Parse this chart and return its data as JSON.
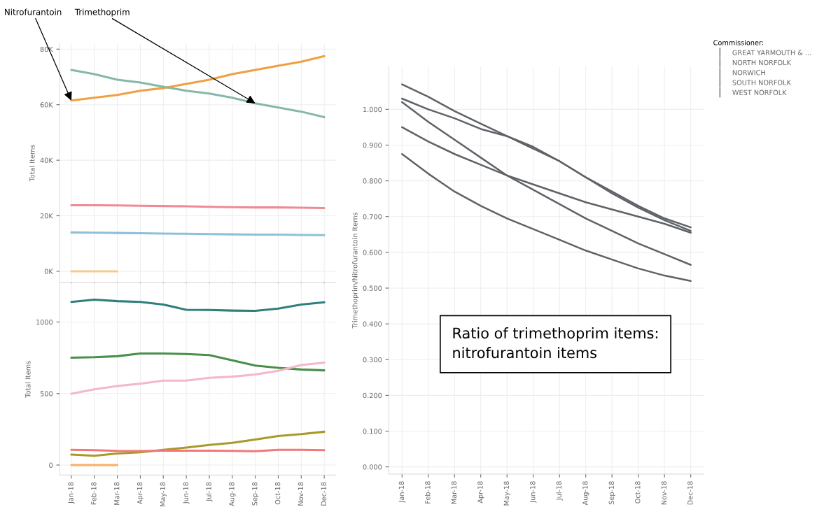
{
  "chart_data": [
    {
      "type": "line",
      "ylabel": "Total Items",
      "tick_labels": "y",
      "grid": true,
      "categories": [
        "Jan-18",
        "Feb-18",
        "Mar-18",
        "Apr-18",
        "May-18",
        "Jun-18",
        "Jul-18",
        "Aug-18",
        "Sep-18",
        "Oct-18",
        "Nov-18",
        "Dec-18"
      ],
      "ylim": [
        -4000,
        82000
      ],
      "yticks": [
        {
          "value": 0,
          "label": "0K"
        },
        {
          "value": 20000,
          "label": "20K"
        },
        {
          "value": 40000,
          "label": "40K"
        },
        {
          "value": 60000,
          "label": "60K"
        },
        {
          "value": 80000,
          "label": "80K"
        }
      ],
      "annotations": [
        {
          "text": "Nitrofurantoin",
          "x": "Jan-18",
          "y": 61500
        },
        {
          "text": "Trimethoprim",
          "x": "Sep-18",
          "y": 60500
        }
      ],
      "series": [
        {
          "color": "#f0a040",
          "values": [
            61500,
            62500,
            63500,
            65000,
            66000,
            67500,
            69000,
            71000,
            72500,
            74000,
            75500,
            77500
          ]
        },
        {
          "color": "#86b8a8",
          "values": [
            72500,
            71000,
            69000,
            68000,
            66500,
            65000,
            64000,
            62500,
            60500,
            59000,
            57500,
            55500
          ]
        },
        {
          "color": "#ef8a95",
          "values": [
            23800,
            23800,
            23700,
            23600,
            23500,
            23400,
            23200,
            23100,
            23000,
            23000,
            22900,
            22800
          ]
        },
        {
          "color": "#8fc0d8",
          "values": [
            14000,
            13900,
            13800,
            13700,
            13600,
            13500,
            13400,
            13300,
            13200,
            13200,
            13100,
            13000
          ]
        },
        {
          "color": "#f7c98c",
          "values": [
            0,
            0,
            0,
            null,
            null,
            null,
            null,
            null,
            null,
            null,
            null,
            null
          ]
        }
      ]
    },
    {
      "type": "line",
      "ylabel": "Total Items",
      "grid": true,
      "categories": [
        "Jan-18",
        "Feb-18",
        "Mar-18",
        "Apr-18",
        "May-18",
        "Jun-18",
        "Jul-18",
        "Aug-18",
        "Sep-18",
        "Oct-18",
        "Nov-18",
        "Dec-18"
      ],
      "ylim": [
        -70,
        1270
      ],
      "yticks": [
        0,
        500,
        1000
      ],
      "series": [
        {
          "color": "#2f7f7a",
          "values": [
            1141,
            1156,
            1146,
            1141,
            1122,
            1086,
            1084,
            1080,
            1078,
            1094,
            1122,
            1138
          ]
        },
        {
          "color": "#4a8f4a",
          "values": [
            751,
            754,
            761,
            780,
            780,
            776,
            769,
            732,
            696,
            680,
            668,
            662
          ]
        },
        {
          "color": "#f4b8c8",
          "values": [
            499,
            529,
            553,
            569,
            590,
            590,
            610,
            618,
            633,
            659,
            699,
            716
          ]
        },
        {
          "color": "#a89a2a",
          "values": [
            73,
            65,
            81,
            89,
            106,
            122,
            141,
            155,
            179,
            203,
            216,
            233
          ]
        },
        {
          "color": "#f07878",
          "values": [
            106,
            104,
            99,
            98,
            100,
            100,
            100,
            99,
            97,
            106,
            106,
            104
          ]
        },
        {
          "color": "#f7b060",
          "values": [
            0,
            0,
            0,
            null,
            null,
            null,
            null,
            null,
            null,
            null,
            null,
            null
          ]
        }
      ]
    },
    {
      "type": "line",
      "ylabel": "Trimethoprim/Nitrofurantoin Items",
      "grid": true,
      "legend": "top right",
      "legend_title": "Commissioner:",
      "categories": [
        "Jan-18",
        "Feb-18",
        "Mar-18",
        "Apr-18",
        "May-18",
        "Jun-18",
        "Jul-18",
        "Aug-18",
        "Sep-18",
        "Oct-18",
        "Nov-18",
        "Dec-18"
      ],
      "ylim": [
        -0.02,
        1.12
      ],
      "yticks": [
        {
          "value": 0,
          "label": "0.000"
        },
        {
          "value": 0.1,
          "label": "0.100"
        },
        {
          "value": 0.2,
          "label": "0.200"
        },
        {
          "value": 0.3,
          "label": "0.300"
        },
        {
          "value": 0.4,
          "label": "0.400"
        },
        {
          "value": 0.5,
          "label": "0.500"
        },
        {
          "value": 0.6,
          "label": "0.600"
        },
        {
          "value": 0.7,
          "label": "0.700"
        },
        {
          "value": 0.8,
          "label": "0.800"
        },
        {
          "value": 0.9,
          "label": "0.900"
        },
        {
          "value": 1.0,
          "label": "1.000"
        }
      ],
      "annotations": [
        "Ratio of trimethoprim items: nitrofurantoin items"
      ],
      "series": [
        {
          "name": "GREAT YARMOUTH & ...",
          "color": "#5f6368",
          "values": [
            1.07,
            1.035,
            0.995,
            0.96,
            0.925,
            0.89,
            0.855,
            0.81,
            0.77,
            0.73,
            0.695,
            0.67
          ]
        },
        {
          "name": "NORTH NORFOLK",
          "color": "#5f6368",
          "values": [
            1.03,
            1.0,
            0.975,
            0.945,
            0.925,
            0.895,
            0.855,
            0.81,
            0.765,
            0.725,
            0.69,
            0.66
          ]
        },
        {
          "name": "NORWICH",
          "color": "#5f6368",
          "values": [
            1.02,
            0.965,
            0.915,
            0.865,
            0.815,
            0.775,
            0.735,
            0.695,
            0.66,
            0.625,
            0.595,
            0.565
          ]
        },
        {
          "name": "SOUTH NORFOLK",
          "color": "#5f6368",
          "values": [
            0.95,
            0.91,
            0.875,
            0.845,
            0.815,
            0.79,
            0.765,
            0.74,
            0.72,
            0.7,
            0.68,
            0.655
          ]
        },
        {
          "name": "WEST NORFOLK",
          "color": "#5f6368",
          "values": [
            0.875,
            0.82,
            0.77,
            0.73,
            0.695,
            0.665,
            0.635,
            0.605,
            0.58,
            0.555,
            0.535,
            0.52
          ]
        }
      ]
    }
  ]
}
